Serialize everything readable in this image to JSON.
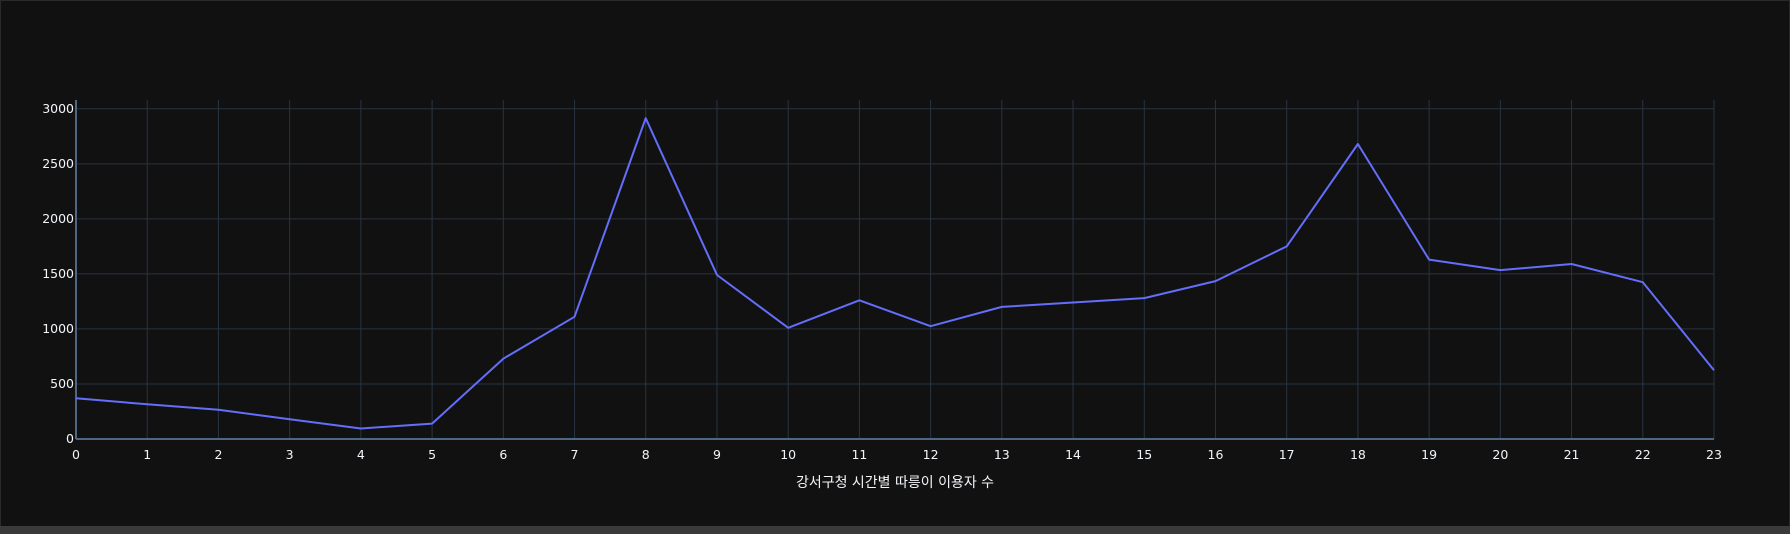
{
  "chart_data": {
    "type": "line",
    "title": "",
    "xlabel": "강서구청 시간별 따릉이 이용자 수",
    "ylabel": "",
    "x": [
      0,
      1,
      2,
      3,
      4,
      5,
      6,
      7,
      8,
      9,
      10,
      11,
      12,
      13,
      14,
      15,
      16,
      17,
      18,
      19,
      20,
      21,
      22,
      23
    ],
    "series": [
      {
        "values": [
          370,
          315,
          265,
          180,
          95,
          140,
          730,
          1110,
          2915,
          1490,
          1010,
          1260,
          1025,
          1200,
          1240,
          1280,
          1435,
          1750,
          2680,
          1630,
          1535,
          1590,
          1425,
          625
        ]
      }
    ],
    "xlim": [
      0,
      23
    ],
    "ylim": [
      0,
      3080
    ],
    "xticks": [
      "0",
      "1",
      "2",
      "3",
      "4",
      "5",
      "6",
      "7",
      "8",
      "9",
      "10",
      "11",
      "12",
      "13",
      "14",
      "15",
      "16",
      "17",
      "18",
      "19",
      "20",
      "21",
      "22",
      "23"
    ],
    "yticks": [
      "0",
      "500",
      "1000",
      "1500",
      "2000",
      "2500",
      "3000"
    ],
    "ytick_values": [
      0,
      500,
      1000,
      1500,
      2000,
      2500,
      3000
    ],
    "grid": true,
    "colors": {
      "background": "#111111",
      "grid": "#283442",
      "zeroline": "#506784",
      "line": "#636efa",
      "text": "#f2f5fa"
    }
  }
}
